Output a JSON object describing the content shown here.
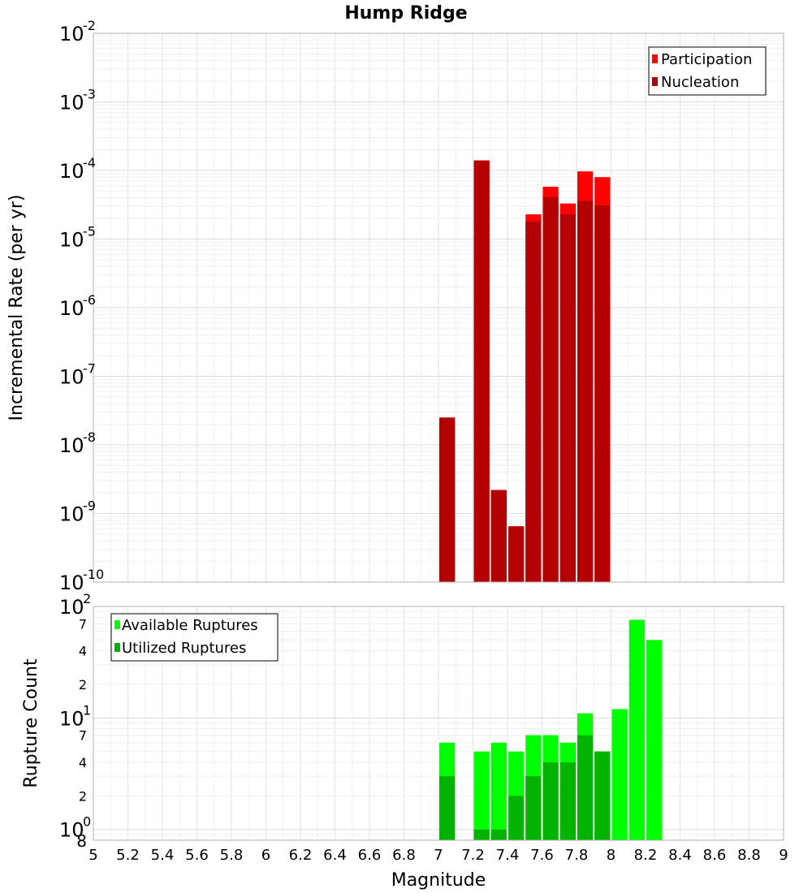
{
  "chart_data": [
    {
      "type": "bar",
      "title": "Hump Ridge",
      "ylabel": "Incremental Rate (per yr)",
      "yscale": "log",
      "ylim": [
        1e-10,
        0.01
      ],
      "xlim": [
        5,
        9
      ],
      "y_tick_exponents": [
        "-10",
        "-9",
        "-8",
        "-7",
        "-6",
        "-5",
        "-4",
        "-3",
        "-2"
      ],
      "grid": true,
      "legend": {
        "position": "top-right",
        "entries": [
          {
            "label": "Participation",
            "color": "#ff0000"
          },
          {
            "label": "Nucleation",
            "color": "#b30000"
          }
        ]
      },
      "series": [
        {
          "name": "Participation",
          "color": "#ff0000",
          "x": [
            7.05,
            7.25,
            7.35,
            7.45,
            7.55,
            7.65,
            7.75,
            7.85,
            7.95
          ],
          "values": [
            2.5e-08,
            0.00014,
            2.2e-09,
            6.5e-10,
            2.3e-05,
            5.8e-05,
            3.3e-05,
            9.7e-05,
            8e-05
          ]
        },
        {
          "name": "Nucleation",
          "color": "#b30000",
          "x": [
            7.05,
            7.25,
            7.35,
            7.45,
            7.55,
            7.65,
            7.75,
            7.85,
            7.95
          ],
          "values": [
            2.5e-08,
            0.00014,
            2.2e-09,
            6.5e-10,
            1.8e-05,
            4.1e-05,
            2.3e-05,
            3.6e-05,
            3.1e-05
          ]
        }
      ]
    },
    {
      "type": "bar",
      "xlabel": "Magnitude",
      "ylabel": "Rupture Count",
      "yscale": "log",
      "ylim": [
        0.8,
        100
      ],
      "xlim": [
        5,
        9
      ],
      "x_ticks": [
        "5",
        "5.2",
        "5.4",
        "5.6",
        "5.8",
        "6",
        "6.2",
        "6.4",
        "6.6",
        "6.8",
        "7",
        "7.2",
        "7.4",
        "7.6",
        "7.8",
        "8",
        "8.2",
        "8.4",
        "8.6",
        "8.8",
        "9"
      ],
      "y_tick_labels": {
        "major_base": "10",
        "major_exponents": [
          "0",
          "1",
          "2"
        ],
        "minor": [
          "2",
          "4",
          "7",
          "2",
          "4",
          "7"
        ],
        "bottom_minor": "8"
      },
      "grid": true,
      "legend": {
        "position": "top-left",
        "entries": [
          {
            "label": "Available Ruptures",
            "color": "#00ff00"
          },
          {
            "label": "Utilized Ruptures",
            "color": "#00b300"
          }
        ]
      },
      "series": [
        {
          "name": "Available Ruptures",
          "color": "#00ff00",
          "x": [
            7.05,
            7.25,
            7.35,
            7.45,
            7.55,
            7.65,
            7.75,
            7.85,
            7.95,
            8.05,
            8.15,
            8.25
          ],
          "values": [
            6,
            5,
            6,
            5,
            7,
            7,
            6,
            11,
            5,
            12,
            76,
            50
          ]
        },
        {
          "name": "Utilized Ruptures",
          "color": "#00b300",
          "x": [
            7.05,
            7.25,
            7.35,
            7.45,
            7.55,
            7.65,
            7.75,
            7.85,
            7.95,
            8.05,
            8.15,
            8.25
          ],
          "values": [
            3,
            1,
            1,
            2,
            3,
            4,
            4,
            7,
            5,
            0,
            0,
            0
          ]
        }
      ]
    }
  ]
}
